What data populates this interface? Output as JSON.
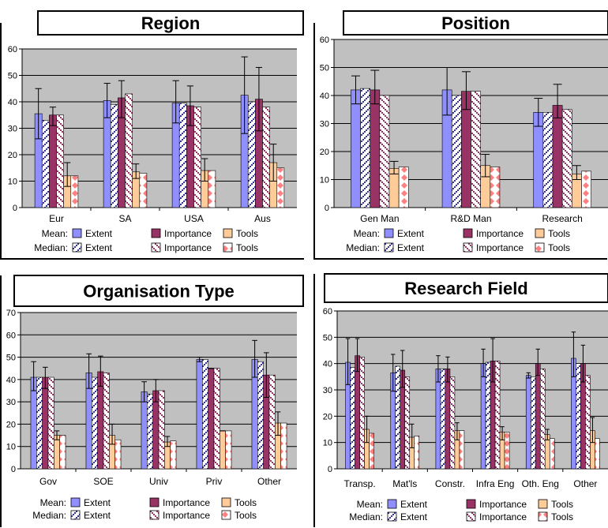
{
  "legend": {
    "mean_label": "Mean:",
    "median_label": "Median:",
    "items": [
      "Extent",
      "Importance",
      "Tools"
    ]
  },
  "colors": {
    "extent": "#8f8fff",
    "importance": "#993366",
    "tools": "#ffcc99",
    "extent_pattern": "#333399",
    "importance_pattern": "#993366",
    "tools_pattern": "#ff8080",
    "plot_bg": "#c0c0c0"
  },
  "chart_data": [
    {
      "type": "bar",
      "title": "Region",
      "categories": [
        "Eur",
        "SA",
        "USA",
        "Aus"
      ],
      "ylim": [
        0,
        60
      ],
      "yticks": [
        0,
        10,
        20,
        30,
        40,
        50,
        60
      ],
      "grid": true,
      "series": [
        {
          "name": "Extent",
          "stat": "Mean",
          "values": [
            35.5,
            40.5,
            39.5,
            42.5
          ],
          "error": [
            [
              26,
              45
            ],
            [
              34,
              47
            ],
            [
              32,
              48
            ],
            [
              28,
              57
            ]
          ]
        },
        {
          "name": "Extent",
          "stat": "Median",
          "values": [
            33,
            39,
            39.5,
            40
          ]
        },
        {
          "name": "Importance",
          "stat": "Mean",
          "values": [
            35,
            41.5,
            38.5,
            41
          ],
          "error": [
            [
              31,
              38
            ],
            [
              34,
              48
            ],
            [
              31,
              46
            ],
            [
              29,
              53
            ]
          ]
        },
        {
          "name": "Importance",
          "stat": "Median",
          "values": [
            35,
            43,
            38,
            38
          ]
        },
        {
          "name": "Tools",
          "stat": "Mean",
          "values": [
            12,
            13.5,
            14,
            17
          ],
          "error": [
            [
              8,
              17
            ],
            [
              11,
              16.5
            ],
            [
              10,
              18.5
            ],
            [
              10,
              24
            ]
          ]
        },
        {
          "name": "Tools",
          "stat": "Median",
          "values": [
            12,
            13,
            14,
            15
          ]
        }
      ]
    },
    {
      "type": "bar",
      "title": "Position",
      "categories": [
        "Gen Man",
        "R&D Man",
        "Research"
      ],
      "ylim": [
        0,
        60
      ],
      "yticks": [
        0,
        10,
        20,
        30,
        40,
        50,
        60
      ],
      "grid": true,
      "series": [
        {
          "name": "Extent",
          "stat": "Mean",
          "values": [
            42,
            42,
            34
          ],
          "error": [
            [
              37,
              47
            ],
            [
              33,
              50
            ],
            [
              29,
              39
            ]
          ]
        },
        {
          "name": "Extent",
          "stat": "Median",
          "values": [
            42.5,
            40,
            34
          ]
        },
        {
          "name": "Importance",
          "stat": "Mean",
          "values": [
            42,
            41.5,
            36.5
          ],
          "error": [
            [
              37,
              49
            ],
            [
              35,
              48.5
            ],
            [
              32,
              44
            ]
          ]
        },
        {
          "name": "Importance",
          "stat": "Median",
          "values": [
            40,
            41.5,
            35
          ]
        },
        {
          "name": "Tools",
          "stat": "Mean",
          "values": [
            14,
            15,
            12
          ],
          "error": [
            [
              12,
              16.5
            ],
            [
              11,
              19
            ],
            [
              10,
              15
            ]
          ]
        },
        {
          "name": "Tools",
          "stat": "Median",
          "values": [
            14.5,
            14.5,
            13
          ]
        }
      ]
    },
    {
      "type": "bar",
      "title": "Organisation Type",
      "categories": [
        "Gov",
        "SOE",
        "Univ",
        "Priv",
        "Other"
      ],
      "ylim": [
        0,
        70
      ],
      "yticks": [
        0,
        10,
        20,
        30,
        40,
        50,
        60,
        70
      ],
      "grid": true,
      "series": [
        {
          "name": "Extent",
          "stat": "Mean",
          "values": [
            41,
            43,
            34.5,
            49,
            49
          ],
          "error": [
            [
              35,
              48
            ],
            [
              36,
              51.5
            ],
            [
              30,
              39
            ],
            [
              48,
              50
            ],
            [
              41,
              57.5
            ]
          ]
        },
        {
          "name": "Extent",
          "stat": "Median",
          "values": [
            41,
            41,
            33.5,
            49,
            48
          ]
        },
        {
          "name": "Importance",
          "stat": "Mean",
          "values": [
            41,
            43.5,
            35,
            45,
            42
          ],
          "error": [
            [
              36,
              45.5
            ],
            [
              37,
              50.5
            ],
            [
              30,
              40
            ],
            [
              45,
              45
            ],
            [
              32,
              52
            ]
          ]
        },
        {
          "name": "Importance",
          "stat": "Median",
          "values": [
            41,
            43,
            35,
            45,
            42
          ]
        },
        {
          "name": "Tools",
          "stat": "Mean",
          "values": [
            15,
            15,
            12,
            17,
            20.5
          ],
          "error": [
            [
              13,
              17
            ],
            [
              11,
              20
            ],
            [
              10,
              14.5
            ],
            [
              17,
              17
            ],
            [
              15,
              25.5
            ]
          ]
        },
        {
          "name": "Tools",
          "stat": "Median",
          "values": [
            15,
            13,
            12.5,
            17,
            20.5
          ]
        }
      ]
    },
    {
      "type": "bar",
      "title": "Research Field",
      "categories": [
        "Transp.",
        "Mat'ls",
        "Constr.",
        "Infra Eng",
        "Oth. Eng",
        "Other"
      ],
      "ylim": [
        0,
        60
      ],
      "yticks": [
        0,
        10,
        20,
        30,
        40,
        50,
        60
      ],
      "grid": true,
      "series": [
        {
          "name": "Extent",
          "stat": "Mean",
          "values": [
            40.5,
            36.5,
            38,
            40,
            35.5,
            42
          ],
          "error": [
            [
              32,
              49.5
            ],
            [
              29.5,
              43.5
            ],
            [
              33,
              43
            ],
            [
              35,
              45.5
            ],
            [
              34.5,
              36.5
            ],
            [
              35,
              52
            ]
          ]
        },
        {
          "name": "Extent",
          "stat": "Median",
          "values": [
            38.5,
            39,
            38,
            40.5,
            35,
            40
          ]
        },
        {
          "name": "Importance",
          "stat": "Mean",
          "values": [
            43,
            37.5,
            38,
            41,
            40,
            40
          ],
          "error": [
            [
              37,
              49.5
            ],
            [
              31,
              45
            ],
            [
              33,
              42.5
            ],
            [
              33,
              49.5
            ],
            [
              35.5,
              45.5
            ],
            [
              33,
              47
            ]
          ]
        },
        {
          "name": "Importance",
          "stat": "Median",
          "values": [
            42.5,
            35,
            35,
            41,
            38,
            35.5
          ]
        },
        {
          "name": "Tools",
          "stat": "Mean",
          "values": [
            15,
            12,
            14.5,
            14,
            13,
            14.5
          ],
          "error": [
            [
              10,
              20
            ],
            [
              8,
              17
            ],
            [
              11,
              17.5
            ],
            [
              11,
              16
            ],
            [
              11,
              15
            ],
            [
              10,
              19.5
            ]
          ]
        },
        {
          "name": "Tools",
          "stat": "Median",
          "values": [
            13.5,
            12.5,
            14.5,
            14,
            11.5,
            11.5
          ]
        }
      ]
    }
  ]
}
